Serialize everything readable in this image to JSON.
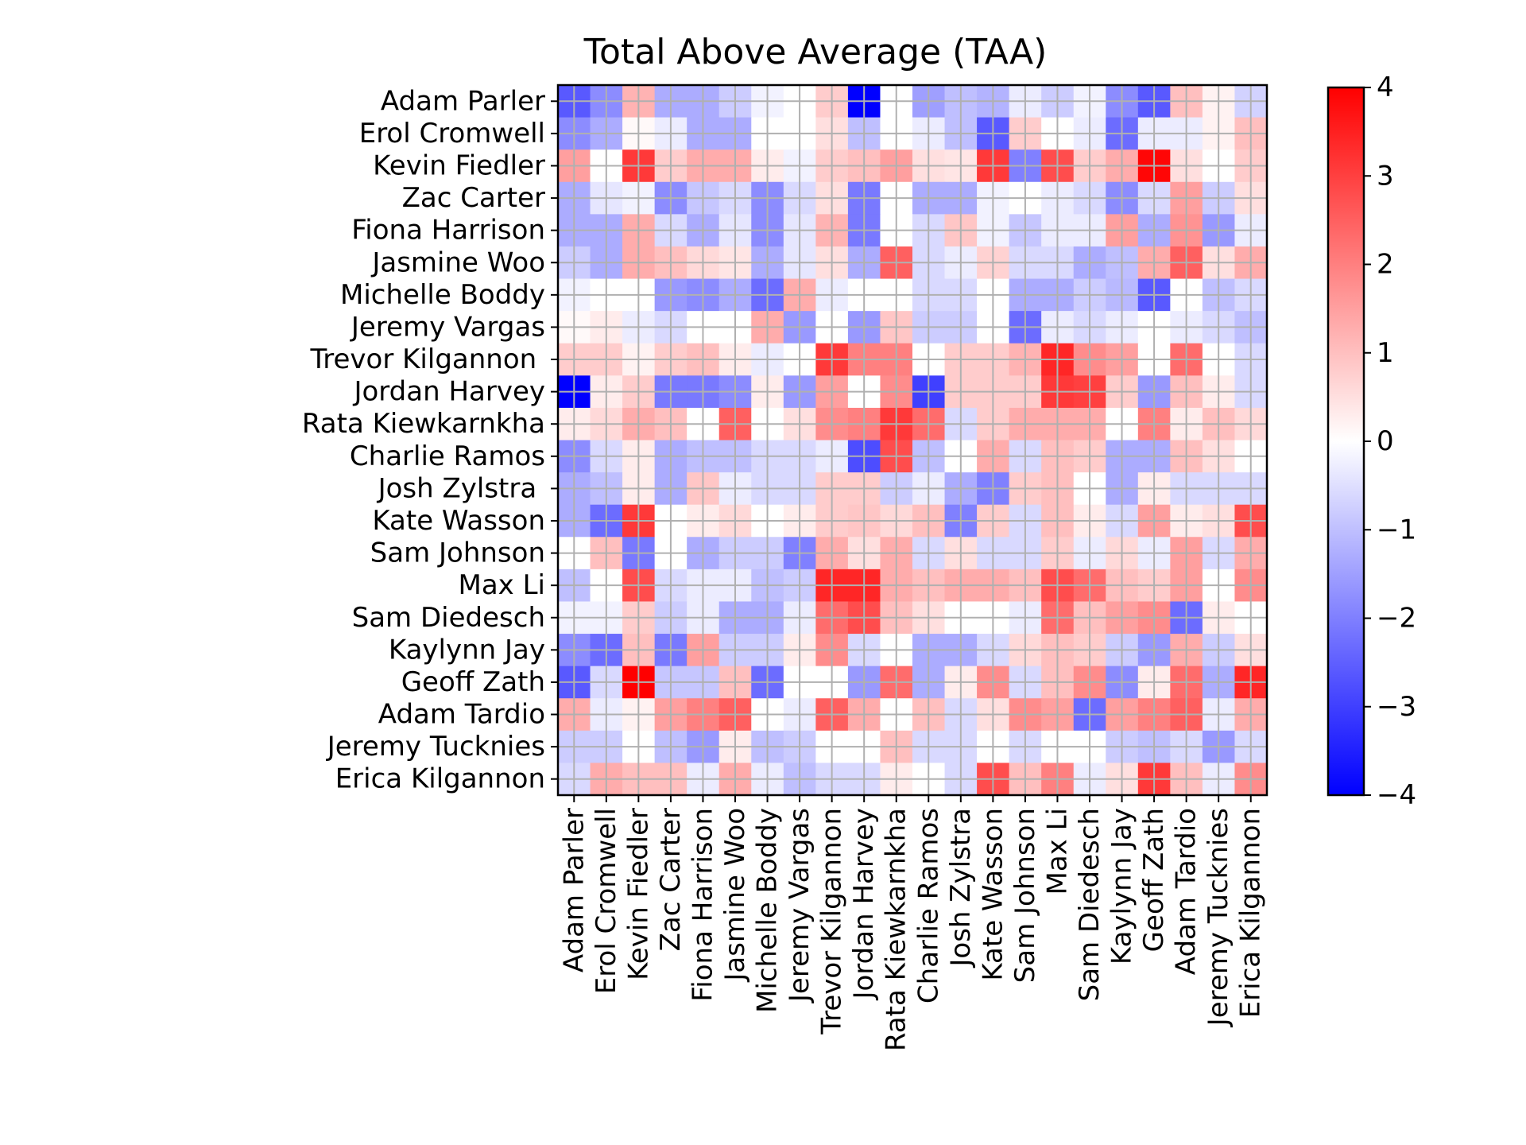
{
  "chart_data": {
    "type": "heatmap",
    "title": "Total Above Average (TAA)",
    "colormap": "bwr",
    "colors": {
      "low": "#0000ff",
      "mid": "#ffffff",
      "high": "#ff0000",
      "grid": "#b0b0b0"
    },
    "vlim": [
      -4,
      4
    ],
    "colorbar_ticks": [
      "4",
      "3",
      "2",
      "1",
      "0",
      "−1",
      "−2",
      "−3",
      "−4"
    ],
    "colorbar_tick_values": [
      4,
      3,
      2,
      1,
      0,
      -1,
      -2,
      -3,
      -4
    ],
    "grid": true,
    "x_tick_rotation": "vertical",
    "rows": [
      "Adam Parler",
      "Erol Cromwell",
      "Kevin Fiedler",
      "Zac Carter",
      "Fiona Harrison",
      "Jasmine Woo",
      "Michelle Boddy",
      "Jeremy Vargas",
      "Trevor Kilgannon ",
      "Jordan Harvey",
      "Rata Kiewkarnkha",
      "Charlie Ramos",
      "Josh Zylstra ",
      "Kate Wasson",
      "Sam Johnson",
      "Max Li",
      "Sam Diedesch",
      "Kaylynn Jay",
      "Geoff Zath",
      "Adam Tardio",
      "Jeremy Tucknies",
      "Erica Kilgannon"
    ],
    "columns": [
      "Adam Parler",
      "Erol Cromwell",
      "Kevin Fiedler",
      "Zac Carter",
      "Fiona Harrison",
      "Jasmine Woo",
      "Michelle Boddy",
      "Jeremy Vargas",
      "Trevor Kilgannon",
      "Jordan Harvey",
      "Rata Kiewkarnkha",
      "Charlie Ramos",
      "Josh Zylstra",
      "Kate Wasson",
      "Sam Johnson",
      "Max Li",
      "Sam Diedesch",
      "Kaylynn Jay",
      "Geoff Zath",
      "Adam Tardio",
      "Jeremy Tucknies",
      "Erica Kilgannon"
    ],
    "values": [
      [
        -2.6,
        -1.8,
        1.2,
        -1.3,
        -1.3,
        -0.8,
        -0.2,
        0.0,
        0.8,
        -4.0,
        0.0,
        -1.5,
        -1.0,
        -1.2,
        -0.3,
        -0.8,
        -0.2,
        -1.8,
        -2.6,
        1.0,
        0.2,
        -0.7
      ],
      [
        -1.8,
        -1.3,
        0.1,
        -0.3,
        -1.3,
        -1.3,
        0.0,
        0.0,
        0.5,
        -1.0,
        0.0,
        -0.3,
        -1.0,
        -2.6,
        0.8,
        0.0,
        -0.3,
        -2.3,
        -0.3,
        -0.3,
        0.2,
        1.0
      ],
      [
        1.5,
        0.0,
        3.1,
        0.8,
        1.3,
        1.3,
        0.3,
        -0.2,
        0.8,
        1.0,
        1.5,
        0.5,
        0.4,
        3.1,
        -2.0,
        2.8,
        0.8,
        1.3,
        3.9,
        0.5,
        0.0,
        0.8
      ],
      [
        -1.3,
        -0.4,
        -0.2,
        -1.8,
        -0.9,
        -0.6,
        -1.8,
        -0.6,
        0.5,
        -2.1,
        0.0,
        -1.3,
        -1.3,
        -0.2,
        0.0,
        -0.3,
        -0.6,
        -1.8,
        -0.6,
        1.5,
        -0.8,
        0.5
      ],
      [
        -1.3,
        -1.3,
        1.3,
        -0.6,
        -1.3,
        -0.4,
        -1.8,
        -0.4,
        1.2,
        -2.1,
        0.0,
        -0.6,
        0.9,
        -0.2,
        -0.9,
        -0.3,
        -0.3,
        1.5,
        -1.3,
        1.7,
        -1.6,
        -0.3
      ],
      [
        -0.8,
        -1.3,
        1.3,
        1.0,
        0.6,
        0.4,
        -1.3,
        -0.4,
        0.5,
        -1.3,
        2.5,
        -0.6,
        -0.3,
        0.7,
        -0.6,
        -0.6,
        -1.3,
        -1.0,
        1.3,
        2.5,
        0.5,
        1.3
      ],
      [
        -0.2,
        0.0,
        0.0,
        -1.6,
        -1.8,
        -1.3,
        -2.3,
        1.3,
        -0.3,
        0.0,
        0.0,
        -0.6,
        -0.6,
        0.0,
        -1.3,
        -1.3,
        -0.8,
        -1.1,
        -2.6,
        0.0,
        -1.0,
        -0.6
      ],
      [
        0.1,
        0.3,
        -0.3,
        -0.6,
        0.0,
        0.0,
        1.3,
        -1.6,
        0.0,
        -1.6,
        0.9,
        -0.8,
        -0.8,
        0.0,
        -2.3,
        -0.3,
        -0.6,
        -0.3,
        0.0,
        -0.3,
        -0.6,
        -1.0
      ],
      [
        0.8,
        0.8,
        0.2,
        0.8,
        1.0,
        0.3,
        -0.3,
        0.0,
        3.1,
        2.0,
        2.0,
        0.0,
        0.8,
        0.8,
        1.2,
        3.4,
        1.8,
        1.5,
        0.0,
        2.3,
        0.0,
        -0.6
      ],
      [
        -4.0,
        0.3,
        0.8,
        -2.1,
        -2.1,
        -1.8,
        0.3,
        -1.6,
        1.5,
        0.0,
        1.8,
        -3.0,
        0.8,
        0.8,
        0.8,
        3.1,
        3.0,
        0.8,
        -1.6,
        1.0,
        0.3,
        -0.6
      ],
      [
        0.3,
        0.6,
        1.3,
        1.0,
        0.0,
        2.5,
        0.0,
        0.5,
        1.8,
        2.0,
        3.1,
        2.3,
        -0.6,
        0.8,
        1.3,
        1.3,
        1.3,
        0.0,
        2.0,
        0.3,
        1.0,
        0.6
      ],
      [
        -1.8,
        -0.6,
        0.3,
        -1.3,
        -1.0,
        -1.0,
        -0.6,
        -0.6,
        -0.3,
        -2.8,
        2.8,
        -1.0,
        0.0,
        1.3,
        -0.6,
        1.0,
        0.8,
        -1.3,
        -1.3,
        1.0,
        0.5,
        0.0
      ],
      [
        -1.3,
        -1.0,
        0.3,
        -1.3,
        0.9,
        -0.3,
        -0.6,
        -0.6,
        0.8,
        0.8,
        -0.8,
        -0.3,
        -1.3,
        -2.0,
        0.8,
        1.0,
        0.0,
        -1.3,
        0.3,
        -0.6,
        -0.6,
        -0.6
      ],
      [
        -1.3,
        -2.3,
        3.1,
        0.0,
        0.3,
        0.6,
        0.0,
        0.3,
        0.8,
        0.9,
        0.6,
        1.0,
        -2.0,
        0.8,
        -0.6,
        1.0,
        0.3,
        -0.6,
        1.5,
        0.3,
        0.5,
        2.8
      ],
      [
        0.0,
        1.0,
        -2.1,
        0.0,
        -1.3,
        -0.8,
        -0.8,
        -2.0,
        1.3,
        0.5,
        1.3,
        -0.6,
        0.5,
        -0.6,
        -0.6,
        0.8,
        -0.3,
        0.6,
        -0.3,
        1.5,
        -0.6,
        1.3
      ],
      [
        -1.0,
        0.0,
        2.8,
        -0.6,
        -0.3,
        -0.3,
        -1.0,
        -0.8,
        3.4,
        3.4,
        1.3,
        1.0,
        1.3,
        1.3,
        1.0,
        2.8,
        2.3,
        1.0,
        0.8,
        1.5,
        0.0,
        1.8
      ],
      [
        -0.2,
        -0.2,
        0.8,
        -0.8,
        -0.3,
        -1.3,
        -1.3,
        -0.3,
        2.3,
        2.8,
        1.0,
        0.5,
        0.0,
        0.0,
        -0.3,
        2.3,
        1.0,
        1.5,
        1.8,
        -2.3,
        0.3,
        0.0
      ],
      [
        -1.8,
        -2.3,
        1.0,
        -2.1,
        1.5,
        -0.8,
        -0.8,
        0.3,
        1.8,
        -0.6,
        0.0,
        -1.3,
        -1.3,
        -0.6,
        0.6,
        1.0,
        0.8,
        -0.8,
        -1.6,
        1.3,
        -0.8,
        0.5
      ],
      [
        -2.6,
        -0.6,
        4.0,
        -0.9,
        -0.9,
        1.0,
        -2.3,
        0.0,
        0.0,
        -1.6,
        2.3,
        -1.3,
        0.3,
        1.8,
        -0.6,
        1.0,
        1.8,
        -1.8,
        0.3,
        2.3,
        -1.3,
        3.4
      ],
      [
        1.3,
        -0.3,
        0.2,
        1.5,
        2.0,
        2.5,
        0.0,
        -0.3,
        2.5,
        1.3,
        0.0,
        1.0,
        -0.6,
        0.5,
        1.8,
        1.5,
        -2.3,
        1.5,
        2.0,
        2.5,
        -0.3,
        1.3
      ],
      [
        -0.8,
        -0.8,
        0.0,
        -1.0,
        -1.6,
        0.3,
        -1.0,
        -0.8,
        0.0,
        0.0,
        1.0,
        -0.6,
        -0.6,
        0.0,
        -0.6,
        0.0,
        0.0,
        -0.8,
        -1.0,
        -0.6,
        -1.6,
        -0.6
      ],
      [
        -0.6,
        1.3,
        1.0,
        1.0,
        -0.3,
        1.3,
        -0.3,
        -1.0,
        -0.6,
        -0.6,
        0.3,
        0.0,
        -0.6,
        2.8,
        1.0,
        2.0,
        -0.3,
        0.5,
        3.1,
        1.0,
        -0.3,
        1.8
      ]
    ]
  }
}
